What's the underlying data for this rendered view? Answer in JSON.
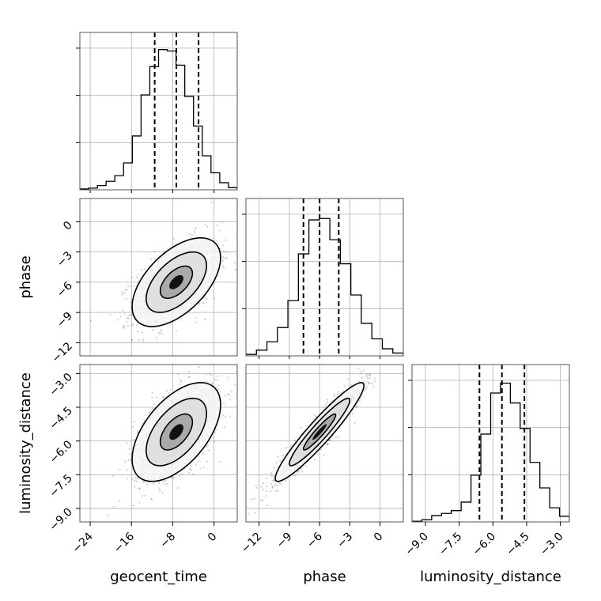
{
  "chart_data": {
    "type": "corner",
    "parameters": [
      "geocent_time",
      "phase",
      "luminosity_distance"
    ],
    "axis_labels": {
      "x": [
        "geocent_time",
        "phase",
        "luminosity_distance"
      ],
      "y": [
        "",
        "phase",
        "luminosity_distance"
      ]
    },
    "ranges": {
      "geocent_time": [
        -26,
        4.5
      ],
      "phase": [
        -13.3,
        2.3
      ],
      "luminosity_distance": [
        -9.6,
        -2.6
      ]
    },
    "ticks": {
      "geocent_time": [
        -24,
        -16,
        -8,
        0
      ],
      "phase": [
        -12,
        -9,
        -6,
        -3,
        0
      ],
      "luminosity_distance": [
        -9.0,
        -7.5,
        -6.0,
        -4.5,
        -3.0
      ]
    },
    "tick_labels": {
      "geocent_time": [
        "−24",
        "−16",
        "−8",
        "0"
      ],
      "phase": [
        "−12",
        "−9",
        "−6",
        "−3",
        "0"
      ],
      "luminosity_distance": [
        "−9.0",
        "−7.5",
        "−6.0",
        "−4.5",
        "−3.0"
      ]
    },
    "quantiles": {
      "geocent_time": [
        -11.5,
        -7.3,
        -3.0
      ],
      "phase": [
        -7.6,
        -6.0,
        -4.1
      ],
      "luminosity_distance": [
        -6.6,
        -5.6,
        -4.6
      ]
    },
    "histograms": {
      "geocent_time": [
        0.006,
        0.012,
        0.03,
        0.06,
        0.1,
        0.19,
        0.38,
        0.67,
        0.87,
        0.99,
        0.98,
        0.88,
        0.66,
        0.45,
        0.24,
        0.12,
        0.05,
        0.015
      ],
      "phase": [
        0.01,
        0.04,
        0.1,
        0.2,
        0.39,
        0.72,
        0.96,
        0.97,
        0.82,
        0.65,
        0.43,
        0.23,
        0.12,
        0.05,
        0.02
      ],
      "luminosity_distance": [
        0.005,
        0.015,
        0.045,
        0.06,
        0.08,
        0.14,
        0.33,
        0.62,
        0.91,
        0.98,
        0.84,
        0.66,
        0.42,
        0.24,
        0.1,
        0.04
      ]
    },
    "correlations": {
      "phase|geocent_time": 0.55,
      "luminosity_distance|geocent_time": 0.55,
      "luminosity_distance|phase": 0.94
    },
    "means": {
      "geocent_time": -7.3,
      "phase": -6.0,
      "luminosity_distance": -5.6
    },
    "stds": {
      "geocent_time": 3.9,
      "phase": 2.0,
      "luminosity_distance": 1.0
    },
    "grid": true
  }
}
